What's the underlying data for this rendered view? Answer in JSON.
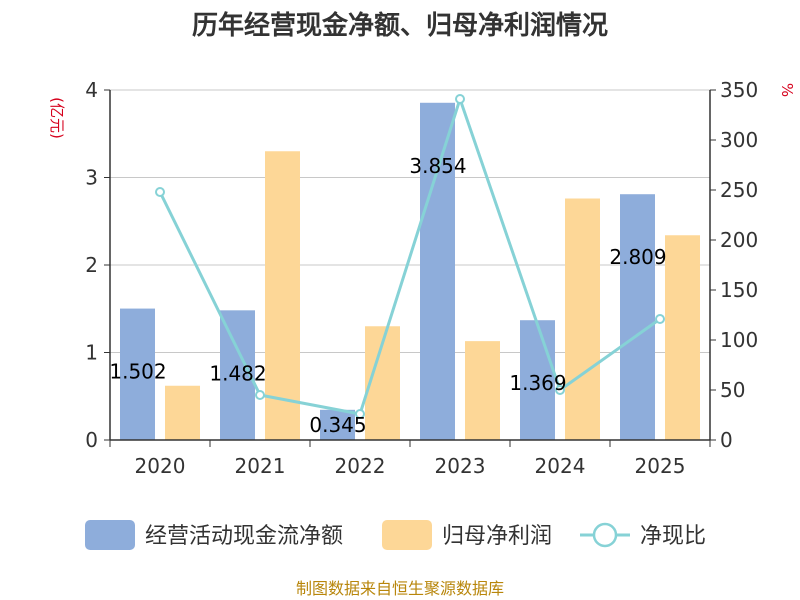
{
  "chart_data": {
    "type": "bar",
    "title": "历年经营现金净额、归母净利润情况",
    "categories": [
      "2020",
      "2021",
      "2022",
      "2023",
      "2024",
      "2025"
    ],
    "series": [
      {
        "name": "经营活动现金流净额",
        "type": "bar",
        "axis": "left",
        "color": "#8eaddb",
        "values": [
          1.502,
          1.482,
          0.345,
          3.854,
          1.369,
          2.809
        ]
      },
      {
        "name": "归母净利润",
        "type": "bar",
        "axis": "left",
        "color": "#fdd797",
        "values": [
          0.62,
          3.3,
          1.3,
          1.13,
          2.76,
          2.34
        ]
      },
      {
        "name": "净现比",
        "type": "line",
        "axis": "right",
        "color": "#86d2d6",
        "values": [
          248,
          45,
          26,
          341,
          50,
          121
        ]
      }
    ],
    "data_labels": [
      "1.502",
      "1.482",
      "0.345",
      "3.854",
      "1.369",
      "2.809"
    ],
    "y_left": {
      "unit": "(亿元)",
      "ylim": [
        0,
        4
      ],
      "ticks": [
        "0",
        "1",
        "2",
        "3",
        "4"
      ]
    },
    "y_right": {
      "unit": "%",
      "ylim": [
        0,
        350
      ],
      "ticks": [
        "0",
        "50",
        "100",
        "150",
        "200",
        "250",
        "300",
        "350"
      ]
    },
    "grid": true,
    "legend_position": "bottom",
    "source": "制图数据来自恒生聚源数据库"
  }
}
